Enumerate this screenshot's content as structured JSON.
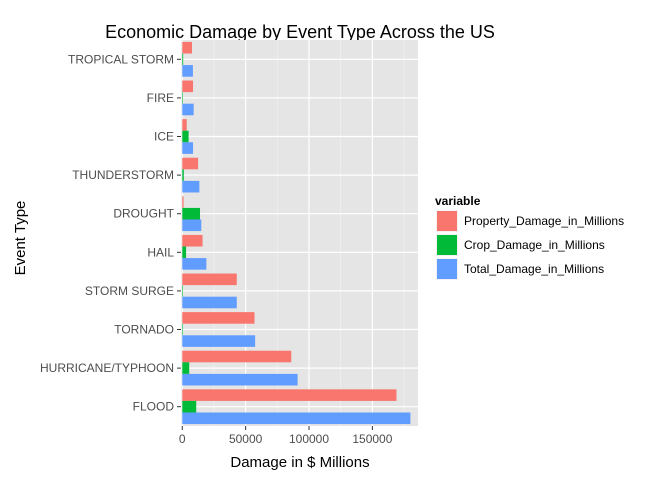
{
  "chart_data": {
    "type": "bar",
    "orientation": "horizontal",
    "title": "Economic Damage by Event Type Across the US",
    "xlabel": "Damage in $ Millions",
    "ylabel": "Event Type",
    "xlim": [
      -1000,
      186000
    ],
    "xticks": [
      0,
      50000,
      100000,
      150000
    ],
    "xtick_labels": [
      "0",
      "50000",
      "100000",
      "150000"
    ],
    "grid": true,
    "legend_position": "right",
    "legend_title": "variable",
    "categories": [
      "FLOOD",
      "HURRICANE/TYPHOON",
      "TORNADO",
      "STORM SURGE",
      "HAIL",
      "DROUGHT",
      "THUNDERSTORM",
      "ICE",
      "FIRE",
      "TROPICAL STORM"
    ],
    "series": [
      {
        "name": "Property_Damage_in_Millions",
        "color": "#F8766D",
        "values": [
          169000,
          86000,
          57000,
          43000,
          16000,
          1000,
          12500,
          3500,
          8500,
          7700
        ]
      },
      {
        "name": "Crop_Damage_in_Millions",
        "color": "#00BA38",
        "values": [
          11000,
          5500,
          400,
          0,
          3000,
          14000,
          1200,
          5000,
          400,
          700
        ]
      },
      {
        "name": "Total_Damage_in_Millions",
        "color": "#619CFF",
        "values": [
          180000,
          91000,
          57500,
          43000,
          19000,
          15000,
          13500,
          8500,
          9000,
          8400
        ]
      }
    ]
  }
}
